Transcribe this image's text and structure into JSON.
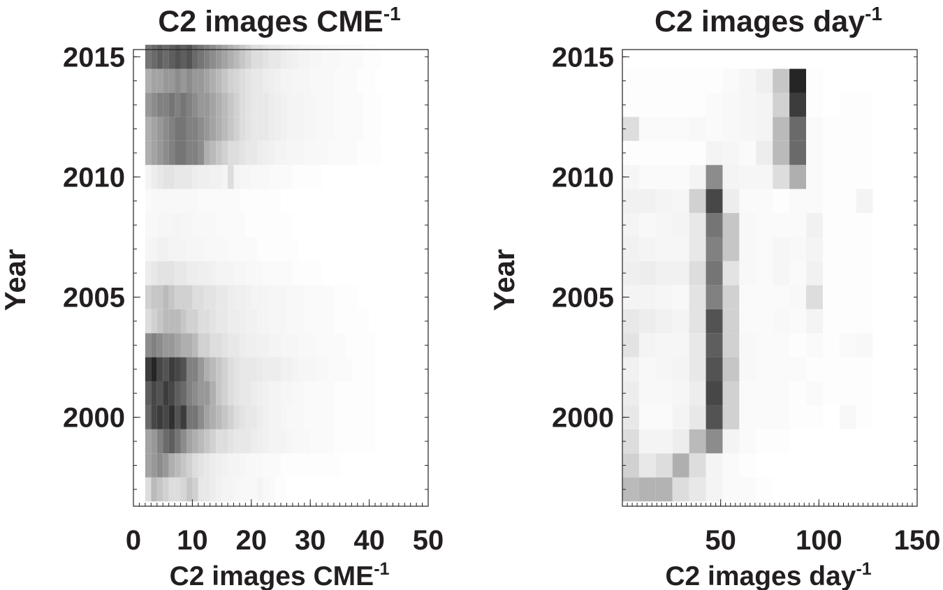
{
  "chart_data": [
    {
      "type": "heatmap",
      "title": "C2 images CME⁻¹",
      "title_base": "C2 images CME",
      "title_sup": "-1",
      "xlabel": "C2 images CME⁻¹",
      "xlabel_base": "C2 images CME",
      "xlabel_sup": "-1",
      "ylabel": "Year",
      "xlim": [
        0,
        50
      ],
      "ylim": [
        1996.3,
        2015.3
      ],
      "xticks": [
        0,
        10,
        20,
        30,
        40,
        50
      ],
      "yticks": [
        2000,
        2005,
        2010,
        2015
      ],
      "xtick_labels": [
        "0",
        "10",
        "20",
        "30",
        "40",
        "50"
      ],
      "ytick_labels": [
        "2000",
        "2005",
        "2010",
        "2015"
      ],
      "colormap": "white-to-black grayscale",
      "bin_width": 1,
      "x_start": 2,
      "years": [
        1997,
        1998,
        1999,
        2000,
        2001,
        2002,
        2003,
        2004,
        2005,
        2006,
        2007,
        2008,
        2009,
        2010,
        2011,
        2012,
        2013,
        2014,
        2015
      ],
      "intensity": [
        [
          0.15,
          0.3,
          0.25,
          0.2,
          0.15,
          0.15,
          0.18,
          0.25,
          0.2,
          0.1,
          0.1,
          0.08,
          0.06,
          0.05,
          0.05,
          0.04,
          0.03,
          0.03,
          0.03,
          0.05,
          0.03,
          0.02,
          0.01,
          0.01,
          0,
          0,
          0,
          0,
          0,
          0,
          0,
          0,
          0,
          0,
          0,
          0,
          0,
          0,
          0,
          0
        ],
        [
          0.4,
          0.45,
          0.5,
          0.45,
          0.35,
          0.3,
          0.25,
          0.2,
          0.15,
          0.12,
          0.1,
          0.08,
          0.07,
          0.06,
          0.05,
          0.05,
          0.04,
          0.03,
          0.03,
          0.03,
          0.02,
          0.02,
          0.02,
          0.01,
          0.01,
          0.01,
          0.01,
          0.01,
          0.01,
          0.01,
          0.01,
          0.01,
          0.01,
          0,
          0,
          0,
          0,
          0,
          0,
          0
        ],
        [
          0.4,
          0.45,
          0.55,
          0.65,
          0.7,
          0.6,
          0.5,
          0.4,
          0.35,
          0.3,
          0.25,
          0.2,
          0.15,
          0.15,
          0.12,
          0.1,
          0.1,
          0.1,
          0.08,
          0.07,
          0.06,
          0.05,
          0.05,
          0.05,
          0.04,
          0.03,
          0.03,
          0.03,
          0.02,
          0.02,
          0.02,
          0.02,
          0.01,
          0.01,
          0.01,
          0.01,
          0.01,
          0.01,
          0.01,
          0
        ],
        [
          0.65,
          0.8,
          0.85,
          0.8,
          0.9,
          0.75,
          0.85,
          0.6,
          0.6,
          0.5,
          0.4,
          0.35,
          0.3,
          0.25,
          0.2,
          0.15,
          0.12,
          0.1,
          0.1,
          0.08,
          0.06,
          0.05,
          0.05,
          0.04,
          0.03,
          0.03,
          0.03,
          0.02,
          0.02,
          0.02,
          0.02,
          0.02,
          0.01,
          0.01,
          0.01,
          0.01,
          0.01,
          0.01,
          0.01,
          0
        ],
        [
          0.7,
          0.8,
          0.75,
          0.85,
          0.8,
          0.7,
          0.65,
          0.55,
          0.5,
          0.45,
          0.45,
          0.35,
          0.25,
          0.2,
          0.15,
          0.12,
          0.1,
          0.1,
          0.08,
          0.07,
          0.06,
          0.05,
          0.05,
          0.04,
          0.04,
          0.03,
          0.03,
          0.02,
          0.02,
          0.02,
          0.02,
          0.02,
          0.01,
          0.01,
          0.01,
          0.01,
          0.01,
          0.01,
          0.01,
          0
        ],
        [
          0.85,
          0.95,
          0.8,
          0.75,
          0.85,
          0.8,
          0.75,
          0.55,
          0.55,
          0.45,
          0.35,
          0.3,
          0.25,
          0.2,
          0.15,
          0.12,
          0.1,
          0.1,
          0.1,
          0.09,
          0.08,
          0.08,
          0.08,
          0.06,
          0.06,
          0.05,
          0.04,
          0.04,
          0.04,
          0.03,
          0.03,
          0.02,
          0.02,
          0.02,
          0.02,
          0.01,
          0.01,
          0.01,
          0.01,
          0
        ],
        [
          0.5,
          0.55,
          0.5,
          0.45,
          0.45,
          0.4,
          0.35,
          0.35,
          0.3,
          0.2,
          0.2,
          0.15,
          0.15,
          0.12,
          0.1,
          0.1,
          0.08,
          0.07,
          0.07,
          0.06,
          0.06,
          0.05,
          0.05,
          0.04,
          0.04,
          0.04,
          0.03,
          0.03,
          0.03,
          0.02,
          0.02,
          0.02,
          0.02,
          0.02,
          0.01,
          0.01,
          0.01,
          0.01,
          0.01,
          0
        ],
        [
          0.15,
          0.2,
          0.25,
          0.3,
          0.3,
          0.3,
          0.25,
          0.2,
          0.2,
          0.15,
          0.15,
          0.12,
          0.1,
          0.1,
          0.08,
          0.08,
          0.07,
          0.06,
          0.06,
          0.05,
          0.05,
          0.04,
          0.04,
          0.04,
          0.03,
          0.03,
          0.03,
          0.02,
          0.02,
          0.02,
          0.02,
          0.02,
          0.01,
          0.01,
          0.01,
          0.01,
          0.01,
          0.01,
          0,
          0
        ],
        [
          0.2,
          0.25,
          0.25,
          0.3,
          0.25,
          0.2,
          0.2,
          0.2,
          0.15,
          0.15,
          0.12,
          0.12,
          0.1,
          0.1,
          0.08,
          0.07,
          0.07,
          0.06,
          0.05,
          0.05,
          0.05,
          0.04,
          0.04,
          0.04,
          0.03,
          0.03,
          0.03,
          0.02,
          0.02,
          0.02,
          0.02,
          0.02,
          0.01,
          0.01,
          0.01,
          0.01,
          0,
          0,
          0,
          0
        ],
        [
          0.08,
          0.1,
          0.12,
          0.12,
          0.12,
          0.1,
          0.1,
          0.08,
          0.08,
          0.07,
          0.07,
          0.06,
          0.05,
          0.05,
          0.05,
          0.04,
          0.04,
          0.03,
          0.03,
          0.03,
          0.02,
          0.02,
          0.02,
          0.02,
          0.02,
          0.01,
          0.01,
          0.01,
          0.01,
          0.01,
          0,
          0,
          0,
          0,
          0,
          0,
          0,
          0,
          0,
          0
        ],
        [
          0.04,
          0.05,
          0.06,
          0.06,
          0.05,
          0.05,
          0.05,
          0.04,
          0.04,
          0.04,
          0.03,
          0.03,
          0.03,
          0.03,
          0.02,
          0.02,
          0.02,
          0.02,
          0.02,
          0.01,
          0.01,
          0.01,
          0.01,
          0.01,
          0.01,
          0.01,
          0,
          0,
          0,
          0,
          0,
          0,
          0,
          0,
          0,
          0,
          0,
          0,
          0,
          0
        ],
        [
          0.03,
          0.03,
          0.04,
          0.04,
          0.04,
          0.05,
          0.04,
          0.04,
          0.03,
          0.03,
          0.03,
          0.03,
          0.02,
          0.02,
          0.02,
          0.02,
          0.02,
          0.01,
          0.01,
          0.01,
          0.01,
          0.01,
          0.01,
          0.01,
          0.01,
          0,
          0,
          0,
          0,
          0,
          0,
          0,
          0,
          0,
          0,
          0,
          0,
          0,
          0,
          0
        ],
        [
          0.02,
          0.03,
          0.03,
          0.03,
          0.03,
          0.03,
          0.03,
          0.03,
          0.03,
          0.02,
          0.02,
          0.02,
          0.02,
          0.02,
          0.02,
          0.02,
          0.01,
          0.01,
          0.01,
          0.01,
          0.01,
          0.01,
          0.01,
          0,
          0,
          0,
          0,
          0,
          0,
          0,
          0,
          0,
          0,
          0,
          0,
          0,
          0,
          0,
          0,
          0
        ],
        [
          0.05,
          0.08,
          0.1,
          0.12,
          0.12,
          0.1,
          0.1,
          0.1,
          0.08,
          0.07,
          0.07,
          0.06,
          0.06,
          0.05,
          0.15,
          0.05,
          0.04,
          0.04,
          0.03,
          0.03,
          0.03,
          0.02,
          0.02,
          0.02,
          0.02,
          0.01,
          0.01,
          0.01,
          0.01,
          0.01,
          0,
          0,
          0,
          0,
          0,
          0,
          0,
          0,
          0,
          0
        ],
        [
          0.35,
          0.4,
          0.45,
          0.5,
          0.55,
          0.6,
          0.6,
          0.55,
          0.55,
          0.5,
          0.35,
          0.3,
          0.25,
          0.2,
          0.15,
          0.15,
          0.12,
          0.1,
          0.1,
          0.08,
          0.07,
          0.06,
          0.05,
          0.05,
          0.04,
          0.04,
          0.04,
          0.03,
          0.03,
          0.03,
          0.03,
          0.02,
          0.02,
          0.02,
          0.02,
          0.02,
          0.01,
          0.01,
          0.01,
          0.01
        ],
        [
          0.35,
          0.4,
          0.45,
          0.5,
          0.55,
          0.6,
          0.6,
          0.55,
          0.55,
          0.5,
          0.45,
          0.4,
          0.35,
          0.3,
          0.25,
          0.2,
          0.15,
          0.12,
          0.1,
          0.1,
          0.1,
          0.08,
          0.07,
          0.06,
          0.05,
          0.05,
          0.05,
          0.04,
          0.04,
          0.03,
          0.03,
          0.03,
          0.02,
          0.02,
          0.02,
          0.02,
          0.02,
          0.01,
          0.01,
          0.01
        ],
        [
          0.45,
          0.5,
          0.55,
          0.55,
          0.6,
          0.55,
          0.6,
          0.55,
          0.5,
          0.45,
          0.45,
          0.4,
          0.35,
          0.3,
          0.25,
          0.2,
          0.15,
          0.12,
          0.1,
          0.1,
          0.1,
          0.08,
          0.07,
          0.06,
          0.05,
          0.05,
          0.05,
          0.04,
          0.04,
          0.03,
          0.03,
          0.03,
          0.02,
          0.02,
          0.02,
          0.02,
          0.02,
          0.01,
          0.01,
          0.01
        ],
        [
          0.35,
          0.4,
          0.4,
          0.45,
          0.45,
          0.5,
          0.45,
          0.5,
          0.45,
          0.45,
          0.4,
          0.35,
          0.3,
          0.25,
          0.2,
          0.18,
          0.15,
          0.12,
          0.1,
          0.1,
          0.08,
          0.07,
          0.06,
          0.05,
          0.05,
          0.04,
          0.04,
          0.04,
          0.03,
          0.03,
          0.03,
          0.03,
          0.02,
          0.02,
          0.02,
          0.02,
          0.01,
          0.01,
          0.01,
          0
        ],
        [
          0.6,
          0.65,
          0.7,
          0.65,
          0.7,
          0.75,
          0.7,
          0.75,
          0.65,
          0.6,
          0.55,
          0.5,
          0.45,
          0.4,
          0.35,
          0.3,
          0.25,
          0.2,
          0.15,
          0.15,
          0.12,
          0.1,
          0.1,
          0.08,
          0.07,
          0.06,
          0.05,
          0.05,
          0.04,
          0.04,
          0.03,
          0.03,
          0.03,
          0.02,
          0.02,
          0.02,
          0.02,
          0.01,
          0.01,
          0.01
        ]
      ]
    },
    {
      "type": "heatmap",
      "title": "C2 images day⁻¹",
      "title_base": "C2 images day",
      "title_sup": "-1",
      "xlabel": "C2 images day⁻¹",
      "xlabel_base": "C2 images day",
      "xlabel_sup": "-1",
      "ylabel": "Year",
      "xlim": [
        0,
        150
      ],
      "ylim": [
        1996.3,
        2015.3
      ],
      "xticks": [
        50,
        100,
        150
      ],
      "yticks": [
        2000,
        2005,
        2010,
        2015
      ],
      "xtick_labels": [
        "50",
        "100",
        "150"
      ],
      "ytick_labels": [
        "2000",
        "2005",
        "2010",
        "2015"
      ],
      "colormap": "white-to-black grayscale",
      "bin_width": 8.5,
      "x_start": 0,
      "years": [
        1997,
        1998,
        1999,
        2000,
        2001,
        2002,
        2003,
        2004,
        2005,
        2006,
        2007,
        2008,
        2009,
        2010,
        2011,
        2012,
        2013,
        2014,
        2015
      ],
      "intensity": [
        [
          0.3,
          0.33,
          0.33,
          0.15,
          0.1,
          0.05,
          0.02,
          0.02,
          0.01,
          0,
          0,
          0,
          0,
          0,
          0,
          0,
          0
        ],
        [
          0.2,
          0.1,
          0.15,
          0.35,
          0.15,
          0.05,
          0.02,
          0.01,
          0,
          0,
          0,
          0,
          0,
          0,
          0,
          0,
          0
        ],
        [
          0.15,
          0.05,
          0.05,
          0.08,
          0.3,
          0.5,
          0.05,
          0.02,
          0.01,
          0.01,
          0,
          0,
          0,
          0,
          0,
          0,
          0
        ],
        [
          0.1,
          0.02,
          0.02,
          0.05,
          0.1,
          0.75,
          0.2,
          0.02,
          0.02,
          0.02,
          0.01,
          0.01,
          0,
          0.03,
          0.01,
          0,
          0
        ],
        [
          0.08,
          0.03,
          0.03,
          0.04,
          0.08,
          0.8,
          0.2,
          0.02,
          0.02,
          0.02,
          0.01,
          0.02,
          0.01,
          0.01,
          0.01,
          0,
          0
        ],
        [
          0.06,
          0.03,
          0.04,
          0.05,
          0.1,
          0.75,
          0.25,
          0.03,
          0.02,
          0.02,
          0.02,
          0.01,
          0.01,
          0.01,
          0.01,
          0,
          0
        ],
        [
          0.12,
          0.05,
          0.04,
          0.04,
          0.1,
          0.7,
          0.2,
          0.03,
          0.02,
          0.02,
          0.01,
          0.02,
          0.01,
          0.02,
          0.03,
          0,
          0
        ],
        [
          0.1,
          0.08,
          0.06,
          0.05,
          0.12,
          0.75,
          0.2,
          0.02,
          0.02,
          0.03,
          0.02,
          0.05,
          0.01,
          0.01,
          0.01,
          0,
          0
        ],
        [
          0.05,
          0.05,
          0.04,
          0.03,
          0.12,
          0.55,
          0.2,
          0.02,
          0.02,
          0.02,
          0.03,
          0.15,
          0.01,
          0.01,
          0.01,
          0,
          0
        ],
        [
          0.07,
          0.08,
          0.06,
          0.06,
          0.15,
          0.6,
          0.12,
          0.03,
          0.02,
          0.04,
          0.02,
          0.06,
          0.01,
          0.01,
          0.01,
          0,
          0
        ],
        [
          0.06,
          0.05,
          0.04,
          0.04,
          0.1,
          0.55,
          0.25,
          0.03,
          0.02,
          0.04,
          0.03,
          0.05,
          0.01,
          0.01,
          0.01,
          0,
          0
        ],
        [
          0.05,
          0.03,
          0.04,
          0.05,
          0.1,
          0.6,
          0.25,
          0.03,
          0.02,
          0.02,
          0.02,
          0.06,
          0.01,
          0.01,
          0.01,
          0,
          0
        ],
        [
          0.06,
          0.06,
          0.05,
          0.04,
          0.2,
          0.8,
          0.08,
          0.02,
          0.02,
          0.01,
          0.02,
          0.02,
          0.01,
          0.01,
          0.05,
          0,
          0
        ],
        [
          0.04,
          0.02,
          0.02,
          0.02,
          0.05,
          0.5,
          0.05,
          0.04,
          0.04,
          0.15,
          0.35,
          0.02,
          0.01,
          0.01,
          0.01,
          0,
          0
        ],
        [
          0.01,
          0.01,
          0.01,
          0.01,
          0.01,
          0.05,
          0.04,
          0.02,
          0.08,
          0.3,
          0.65,
          0.02,
          0.01,
          0.01,
          0.01,
          0,
          0
        ],
        [
          0.15,
          0.02,
          0.02,
          0.02,
          0.03,
          0.02,
          0.03,
          0.04,
          0.05,
          0.3,
          0.65,
          0.02,
          0.01,
          0.01,
          0.01,
          0,
          0
        ],
        [
          0.01,
          0.01,
          0.01,
          0.01,
          0.01,
          0.02,
          0.03,
          0.04,
          0.05,
          0.2,
          0.85,
          0.01,
          0,
          0.01,
          0.01,
          0,
          0
        ],
        [
          0.01,
          0.01,
          0.01,
          0.01,
          0.01,
          0.01,
          0.02,
          0.04,
          0.07,
          0.25,
          0.95,
          0.01,
          0,
          0,
          0,
          0,
          0
        ],
        [
          0,
          0,
          0,
          0,
          0,
          0,
          0,
          0,
          0,
          0,
          0,
          0,
          0,
          0,
          0,
          0,
          0
        ]
      ]
    }
  ]
}
